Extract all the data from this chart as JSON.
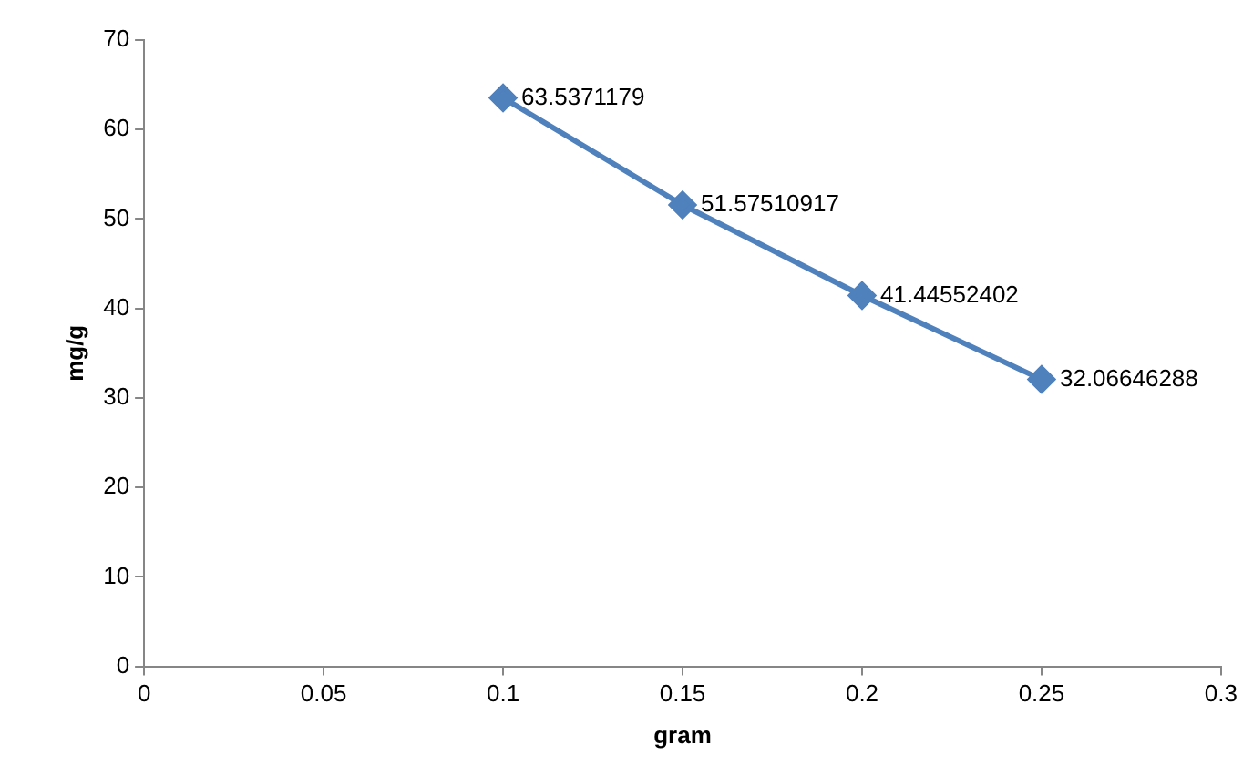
{
  "chart_data": {
    "type": "line",
    "xlabel": "gram",
    "ylabel": "mg/g",
    "x": [
      0.1,
      0.15,
      0.2,
      0.25
    ],
    "series": [
      {
        "color": "#4f81bd",
        "values": [
          63.5371179,
          51.57510917,
          41.44552402,
          32.06646288
        ]
      }
    ],
    "xlim": [
      0,
      0.3
    ],
    "xticks": [
      0,
      0.05,
      0.1,
      0.15,
      0.2,
      0.25,
      0.3
    ],
    "ylim": [
      0,
      70
    ],
    "yticks": [
      0,
      10,
      20,
      30,
      40,
      50,
      60,
      70
    ],
    "grid": false,
    "legend": false,
    "marker": "diamond",
    "line_style": "solid",
    "data_labels": true
  }
}
